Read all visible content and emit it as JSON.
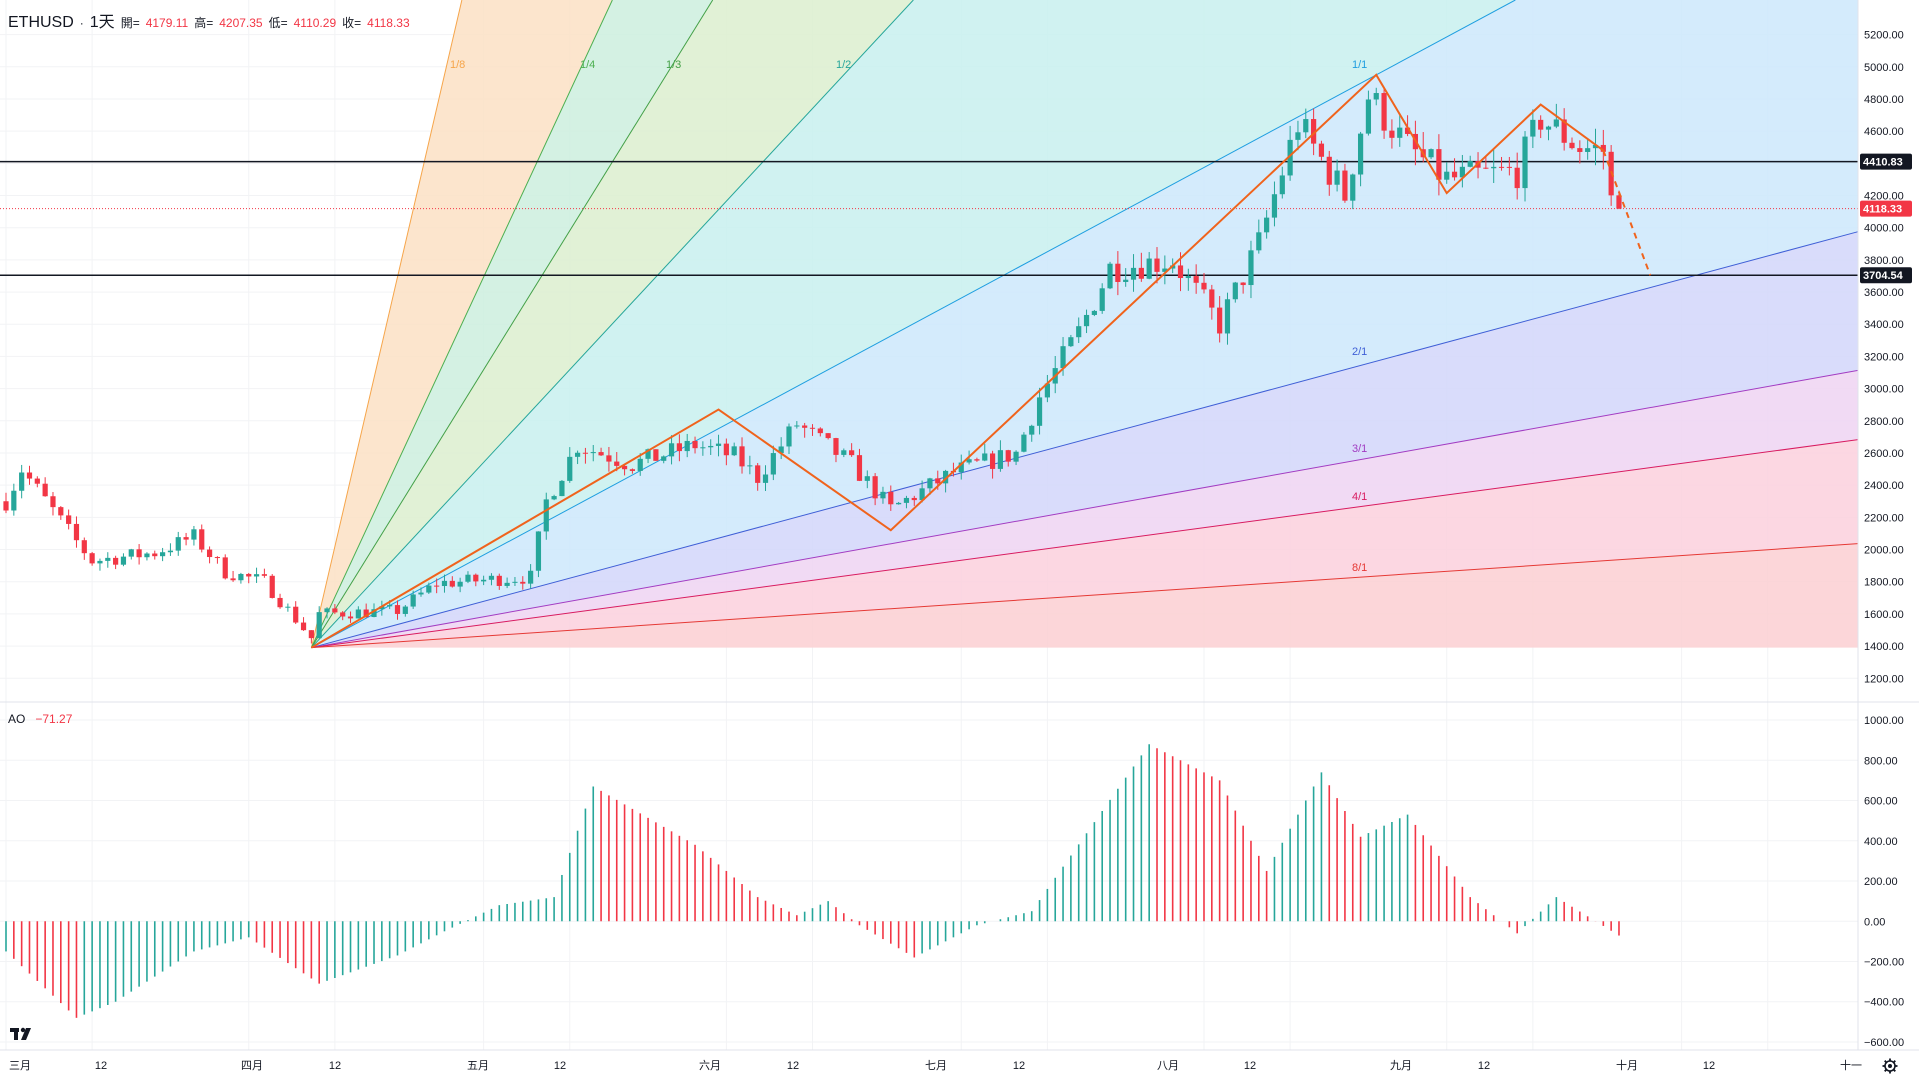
{
  "header": {
    "symbol": "ETHUSD",
    "interval": "1天",
    "open_label": "開=",
    "open_value": "4179.11",
    "high_label": "高=",
    "high_value": "4207.35",
    "low_label": "低=",
    "low_value": "4110.29",
    "close_label": "收=",
    "close_value": "4118.33"
  },
  "indicator": {
    "name": "AO",
    "value": "−71.27"
  },
  "colors": {
    "up": "#26a69a",
    "down": "#f23645",
    "zigzag": "#f0631c",
    "fan_line": "#5b9bd5"
  },
  "chart_data": [
    {
      "type": "candlestick",
      "title": "",
      "x_ticks": [
        "三月",
        "12",
        "四月",
        "12",
        "五月",
        "12",
        "六月",
        "12",
        "七月",
        "12",
        "八月",
        "12",
        "九月",
        "12",
        "十月",
        "12",
        "十一"
      ],
      "y_ticks": [
        1200,
        1400,
        1600,
        1800,
        2000,
        2200,
        2400,
        2600,
        2800,
        3000,
        3200,
        3400,
        3600,
        3800,
        4000,
        4200,
        4400,
        4600,
        4800,
        5000,
        5200
      ],
      "ylim": [
        1040,
        5400
      ],
      "price_labels": [
        "4410.83",
        "4118.33",
        "3704.54"
      ],
      "horizontal_lines": [
        4410.83,
        3704.54
      ],
      "current_price": 4118.33,
      "gann_fan": {
        "origin": {
          "date": "2025-04-09",
          "price": 1390
        },
        "labels": [
          "1/8",
          "1/4",
          "1/3",
          "1/2",
          "1/1",
          "2/1",
          "3/1",
          "4/1",
          "8/1"
        ]
      },
      "zigzag": [
        {
          "date": "2025-04-09",
          "price": 1390
        },
        {
          "date": "2025-05-31",
          "price": 2870
        },
        {
          "date": "2025-06-22",
          "price": 2120
        },
        {
          "date": "2025-08-23",
          "price": 4950
        },
        {
          "date": "2025-09-01",
          "price": 4215
        },
        {
          "date": "2025-09-13",
          "price": 4765
        },
        {
          "date": "2025-09-21",
          "price": 4480
        },
        {
          "date": "2025-09-27",
          "price": 3704
        }
      ],
      "anchors": [
        {
          "date": "2025-03-01",
          "price": 2300
        },
        {
          "date": "2025-03-03",
          "price": 2500
        },
        {
          "date": "2025-03-10",
          "price": 2050
        },
        {
          "date": "2025-03-12",
          "price": 1930
        },
        {
          "date": "2025-03-20",
          "price": 1980
        },
        {
          "date": "2025-03-25",
          "price": 2080
        },
        {
          "date": "2025-03-29",
          "price": 1860
        },
        {
          "date": "2025-04-03",
          "price": 1800
        },
        {
          "date": "2025-04-09",
          "price": 1450
        },
        {
          "date": "2025-04-10",
          "price": 1600
        },
        {
          "date": "2025-04-20",
          "price": 1620
        },
        {
          "date": "2025-04-25",
          "price": 1790
        },
        {
          "date": "2025-05-07",
          "price": 1830
        },
        {
          "date": "2025-05-09",
          "price": 2300
        },
        {
          "date": "2025-05-13",
          "price": 2650
        },
        {
          "date": "2025-05-20",
          "price": 2530
        },
        {
          "date": "2025-05-28",
          "price": 2650
        },
        {
          "date": "2025-06-02",
          "price": 2580
        },
        {
          "date": "2025-06-05",
          "price": 2450
        },
        {
          "date": "2025-06-10",
          "price": 2780
        },
        {
          "date": "2025-06-17",
          "price": 2530
        },
        {
          "date": "2025-06-22",
          "price": 2250
        },
        {
          "date": "2025-06-30",
          "price": 2480
        },
        {
          "date": "2025-07-08",
          "price": 2600
        },
        {
          "date": "2025-07-11",
          "price": 2950
        },
        {
          "date": "2025-07-16",
          "price": 3350
        },
        {
          "date": "2025-07-20",
          "price": 3750
        },
        {
          "date": "2025-07-28",
          "price": 3800
        },
        {
          "date": "2025-08-03",
          "price": 3400
        },
        {
          "date": "2025-08-08",
          "price": 3900
        },
        {
          "date": "2025-08-13",
          "price": 4650
        },
        {
          "date": "2025-08-19",
          "price": 4200
        },
        {
          "date": "2025-08-22",
          "price": 4820
        },
        {
          "date": "2025-08-27",
          "price": 4500
        },
        {
          "date": "2025-09-01",
          "price": 4300
        },
        {
          "date": "2025-09-10",
          "price": 4350
        },
        {
          "date": "2025-09-13",
          "price": 4680
        },
        {
          "date": "2025-09-18",
          "price": 4500
        },
        {
          "date": "2025-09-21",
          "price": 4480
        },
        {
          "date": "2025-09-22",
          "price": 4170
        },
        {
          "date": "2025-09-23",
          "price": 4118
        }
      ]
    },
    {
      "type": "histogram",
      "title": "AO",
      "y_ticks": [
        -600,
        -400,
        -200,
        0,
        200,
        400,
        600,
        800,
        1000
      ],
      "ylim": [
        -620,
        1040
      ],
      "anchors": [
        {
          "date": "2025-03-01",
          "value": -150
        },
        {
          "date": "2025-03-10",
          "value": -480
        },
        {
          "date": "2025-03-15",
          "value": -400
        },
        {
          "date": "2025-03-25",
          "value": -150
        },
        {
          "date": "2025-04-01",
          "value": -80
        },
        {
          "date": "2025-04-10",
          "value": -310
        },
        {
          "date": "2025-04-20",
          "value": -170
        },
        {
          "date": "2025-04-26",
          "value": -50
        },
        {
          "date": "2025-05-03",
          "value": 80
        },
        {
          "date": "2025-05-10",
          "value": 120
        },
        {
          "date": "2025-05-15",
          "value": 670
        },
        {
          "date": "2025-05-28",
          "value": 380
        },
        {
          "date": "2025-06-05",
          "value": 120
        },
        {
          "date": "2025-06-10",
          "value": 30
        },
        {
          "date": "2025-06-14",
          "value": 100
        },
        {
          "date": "2025-06-18",
          "value": -20
        },
        {
          "date": "2025-06-25",
          "value": -180
        },
        {
          "date": "2025-07-03",
          "value": -20
        },
        {
          "date": "2025-07-10",
          "value": 50
        },
        {
          "date": "2025-07-25",
          "value": 880
        },
        {
          "date": "2025-08-03",
          "value": 700
        },
        {
          "date": "2025-08-09",
          "value": 250
        },
        {
          "date": "2025-08-16",
          "value": 740
        },
        {
          "date": "2025-08-21",
          "value": 420
        },
        {
          "date": "2025-08-27",
          "value": 530
        },
        {
          "date": "2025-09-04",
          "value": 120
        },
        {
          "date": "2025-09-10",
          "value": -60
        },
        {
          "date": "2025-09-15",
          "value": 120
        },
        {
          "date": "2025-09-23",
          "value": -71
        }
      ]
    }
  ]
}
